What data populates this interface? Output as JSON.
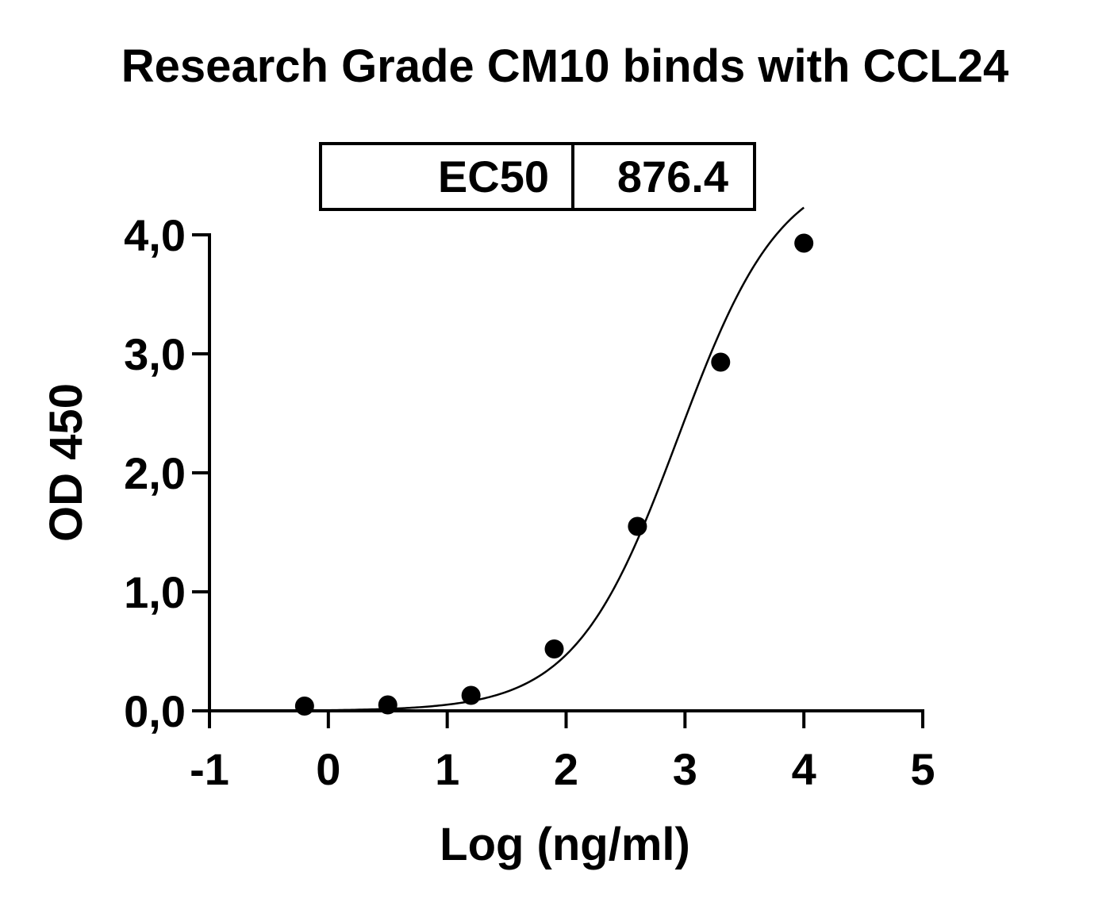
{
  "chart_data": {
    "type": "scatter",
    "title": "Research Grade CM10 binds with CCL24",
    "xlabel": "Log (ng/ml)",
    "ylabel": "OD 450",
    "xlim": [
      -1,
      5
    ],
    "ylim": [
      0,
      4
    ],
    "x_ticks": [
      "-1",
      "0",
      "1",
      "2",
      "3",
      "4",
      "5"
    ],
    "y_ticks": [
      "0,0",
      "1,0",
      "2,0",
      "3,0",
      "4,0"
    ],
    "series": [
      {
        "points": [
          {
            "x": -0.2,
            "y": 0.04
          },
          {
            "x": 0.5,
            "y": 0.05
          },
          {
            "x": 1.2,
            "y": 0.13
          },
          {
            "x": 1.9,
            "y": 0.52
          },
          {
            "x": 2.6,
            "y": 1.55
          },
          {
            "x": 3.3,
            "y": 2.93
          },
          {
            "x": 4.0,
            "y": 3.93
          }
        ]
      }
    ],
    "fit_curve": {
      "model": "4PL",
      "bottom": 0.0,
      "top": 4.6,
      "log_ec50": 2.9428,
      "hill": 1.0,
      "x_range": [
        -0.2,
        4.0
      ]
    },
    "ec50_table": {
      "label": "EC50",
      "value": "876.4"
    },
    "grid": false,
    "colors": {
      "marker": "#000000",
      "line": "#000000"
    }
  }
}
